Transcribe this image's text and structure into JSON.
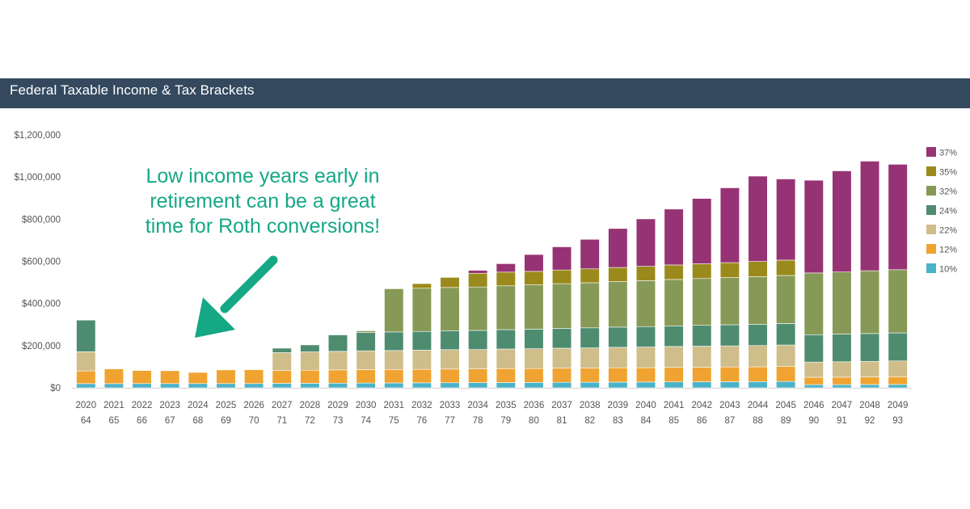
{
  "header": {
    "title": "Federal Taxable Income & Tax Brackets"
  },
  "colors": {
    "header_bg": "#34495e",
    "10%": "#4bb3c9",
    "12%": "#f0a330",
    "22%": "#cfbd8a",
    "24%": "#4e8c70",
    "32%": "#879956",
    "35%": "#9a8a1b",
    "37%": "#963374",
    "annotation": "#14a884"
  },
  "annotation": {
    "lines": [
      "Low income years early in",
      "retirement can be a great",
      "time for Roth conversions!"
    ],
    "icon": "arrow-down-left-icon"
  },
  "chart_data": {
    "type": "bar",
    "stacked": true,
    "categories": [
      "2020",
      "2021",
      "2022",
      "2023",
      "2024",
      "2025",
      "2026",
      "2027",
      "2028",
      "2029",
      "2030",
      "2031",
      "2032",
      "2033",
      "2034",
      "2035",
      "2036",
      "2037",
      "2038",
      "2039",
      "2040",
      "2041",
      "2042",
      "2043",
      "2044",
      "2045",
      "2046",
      "2047",
      "2048",
      "2049"
    ],
    "ages": [
      "64",
      "65",
      "66",
      "67",
      "68",
      "69",
      "70",
      "71",
      "72",
      "73",
      "74",
      "75",
      "76",
      "77",
      "78",
      "79",
      "80",
      "81",
      "82",
      "83",
      "84",
      "85",
      "86",
      "87",
      "88",
      "89",
      "90",
      "91",
      "92",
      "93"
    ],
    "ylim": [
      0,
      1200000
    ],
    "yticks": [
      0,
      200000,
      400000,
      600000,
      800000,
      1000000,
      1200000
    ],
    "ytick_labels": [
      "$0",
      "$200,000",
      "$400,000",
      "$600,000",
      "$800,000",
      "$1,000,000",
      "$1,200,000"
    ],
    "legend_position": "right",
    "series": [
      {
        "name": "10%",
        "values": [
          19750,
          19750,
          20000,
          20000,
          20000,
          20000,
          20000,
          21000,
          21500,
          22000,
          22500,
          23000,
          23500,
          24000,
          24500,
          25000,
          25500,
          26000,
          26500,
          27000,
          27500,
          28000,
          28500,
          29000,
          29500,
          30000,
          15000,
          15000,
          15500,
          16000
        ]
      },
      {
        "name": "12%",
        "values": [
          60500,
          70000,
          62000,
          61000,
          53000,
          65000,
          66000,
          61000,
          62000,
          63000,
          64000,
          64000,
          64000,
          65000,
          65000,
          66000,
          66000,
          67000,
          67000,
          68000,
          68000,
          69000,
          69000,
          70000,
          70000,
          71000,
          35000,
          35500,
          36000,
          36500
        ]
      },
      {
        "name": "22%",
        "values": [
          91000,
          0,
          0,
          0,
          0,
          0,
          0,
          85000,
          87000,
          88000,
          89000,
          90000,
          91000,
          92000,
          92000,
          93000,
          94000,
          95000,
          96000,
          97000,
          98000,
          99000,
          100000,
          100000,
          101000,
          102000,
          72000,
          73000,
          74000,
          75000
        ]
      },
      {
        "name": "24%",
        "values": [
          150000,
          0,
          0,
          0,
          0,
          0,
          0,
          21000,
          33000,
          78000,
          87000,
          88000,
          89000,
          90000,
          91000,
          92000,
          93000,
          94000,
          95000,
          96000,
          97000,
          98000,
          99000,
          100000,
          101000,
          102000,
          130000,
          131000,
          132000,
          133000
        ]
      },
      {
        "name": "32%",
        "values": [
          0,
          0,
          0,
          0,
          0,
          0,
          0,
          0,
          0,
          0,
          8000,
          205000,
          205000,
          205000,
          206000,
          208000,
          210000,
          212000,
          214000,
          216000,
          218000,
          220000,
          222000,
          224000,
          226000,
          228000,
          293000,
          295000,
          298000,
          300000
        ]
      },
      {
        "name": "35%",
        "values": [
          0,
          0,
          0,
          0,
          0,
          0,
          0,
          0,
          0,
          0,
          0,
          3000,
          22000,
          48000,
          65000,
          65000,
          64000,
          65000,
          66000,
          67000,
          68000,
          69000,
          70000,
          71000,
          72000,
          73000,
          0,
          0,
          0,
          0
        ]
      },
      {
        "name": "37%",
        "values": [
          0,
          0,
          0,
          0,
          0,
          0,
          0,
          0,
          0,
          0,
          0,
          0,
          0,
          0,
          14000,
          40000,
          80000,
          110000,
          140000,
          185000,
          225000,
          265000,
          310000,
          355000,
          405000,
          385000,
          440000,
          480000,
          520000,
          500000
        ]
      }
    ]
  }
}
